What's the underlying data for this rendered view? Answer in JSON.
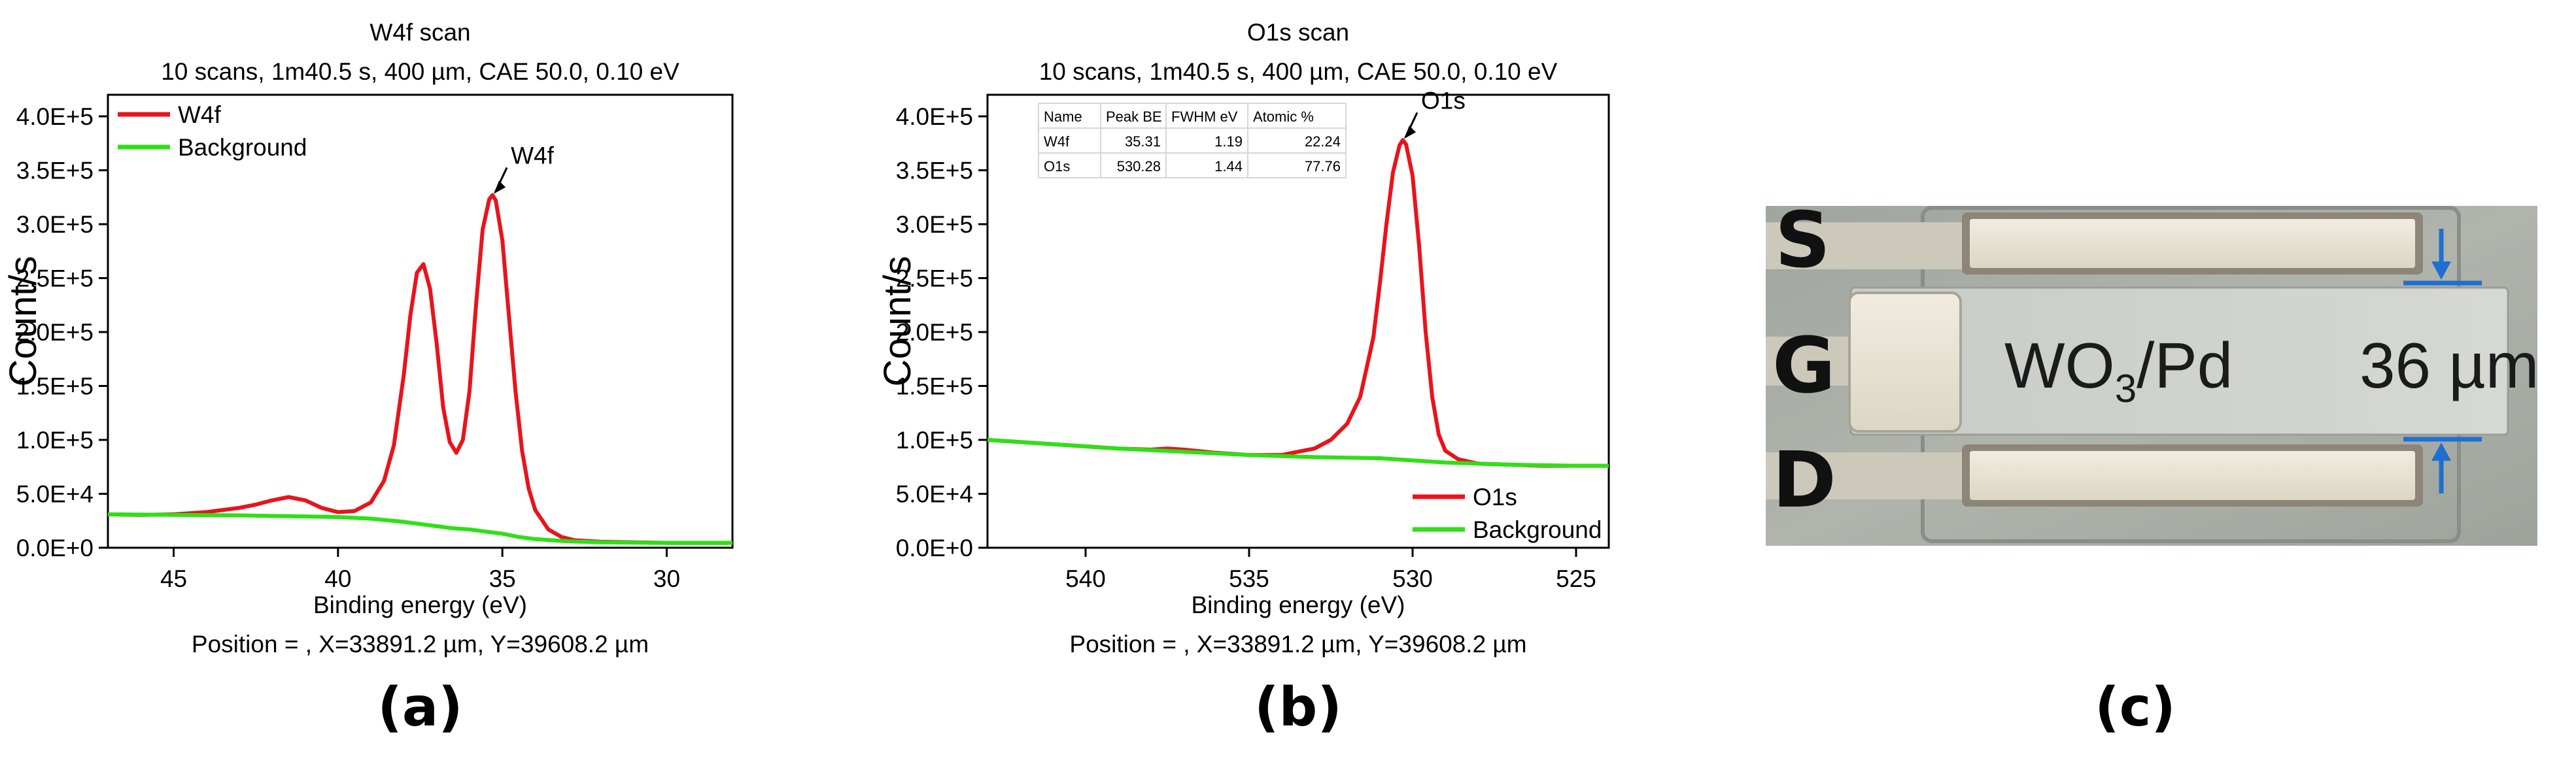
{
  "chart_data": [
    {
      "type": "line",
      "panel_label": "(a)",
      "title": "W4f scan",
      "subtitle": "10 scans, 1m40.5 s, 400 µm, CAE 50.0, 0.10 eV",
      "xlabel": "Binding energy (eV)",
      "ylabel": "Count/s",
      "footer": "Position = , X=33891.2 µm, Y=39608.2 µm",
      "xlim": [
        47,
        28
      ],
      "ylim": [
        0,
        420000
      ],
      "xticks": [
        45,
        40,
        35,
        30
      ],
      "xtick_labels": [
        "45",
        "40",
        "35",
        "30"
      ],
      "yticks": [
        0,
        50000,
        100000,
        150000,
        200000,
        250000,
        300000,
        350000,
        400000
      ],
      "ytick_labels": [
        "0.0E+0",
        "5.0E+4",
        "1.0E+5",
        "1.5E+5",
        "2.0E+5",
        "2.5E+5",
        "3.0E+5",
        "3.5E+5",
        "4.0E+5"
      ],
      "legend_position": "top-left",
      "series": [
        {
          "name": "W4f",
          "color": "#e8141c",
          "x": [
            47,
            46,
            45,
            44,
            43,
            42.5,
            42,
            41.5,
            41,
            40.5,
            40,
            39.5,
            39,
            38.6,
            38.3,
            38,
            37.8,
            37.6,
            37.4,
            37.2,
            37,
            36.8,
            36.6,
            36.4,
            36.2,
            36,
            35.8,
            35.6,
            35.4,
            35.3,
            35.2,
            35,
            34.8,
            34.6,
            34.4,
            34.2,
            34,
            33.6,
            33.2,
            32.8,
            32,
            31,
            30,
            29,
            28
          ],
          "y": [
            31000,
            30500,
            31000,
            33000,
            37000,
            40000,
            44000,
            47000,
            44000,
            37000,
            33000,
            34000,
            42000,
            62000,
            95000,
            160000,
            215000,
            255000,
            263000,
            240000,
            190000,
            130000,
            98000,
            88000,
            100000,
            145000,
            225000,
            295000,
            323000,
            327000,
            322000,
            285000,
            215000,
            145000,
            90000,
            55000,
            35000,
            17000,
            10000,
            7000,
            5500,
            5000,
            4500,
            4500,
            4500
          ]
        },
        {
          "name": "Background",
          "color": "#2ee016",
          "x": [
            47,
            45,
            43,
            41,
            40,
            39,
            38,
            37,
            36.5,
            36,
            35.5,
            35,
            34.5,
            34,
            33.5,
            33,
            32,
            30,
            28
          ],
          "y": [
            31000,
            30500,
            30000,
            29000,
            28500,
            27000,
            24000,
            20000,
            18000,
            17000,
            15000,
            13000,
            10000,
            8000,
            7000,
            6000,
            5000,
            4500,
            4500
          ]
        }
      ],
      "annotations": [
        {
          "text": "W4f",
          "x": 35.3,
          "y": 327000
        }
      ]
    },
    {
      "type": "line",
      "panel_label": "(b)",
      "title": "O1s scan",
      "subtitle": "10 scans, 1m40.5 s, 400 µm, CAE 50.0, 0.10 eV",
      "xlabel": "Binding energy (eV)",
      "ylabel": "Count/s",
      "footer": "Position = , X=33891.2 µm, Y=39608.2 µm",
      "xlim": [
        543,
        524
      ],
      "ylim": [
        0,
        420000
      ],
      "xticks": [
        540,
        535,
        530,
        525
      ],
      "xtick_labels": [
        "540",
        "535",
        "530",
        "525"
      ],
      "yticks": [
        0,
        50000,
        100000,
        150000,
        200000,
        250000,
        300000,
        350000,
        400000
      ],
      "ytick_labels": [
        "0.0E+0",
        "5.0E+4",
        "1.0E+5",
        "1.5E+5",
        "2.0E+5",
        "2.5E+5",
        "3.0E+5",
        "3.5E+5",
        "4.0E+5"
      ],
      "legend_position": "bottom-right",
      "series": [
        {
          "name": "O1s",
          "color": "#e8141c",
          "x": [
            543,
            541,
            539,
            538,
            537.5,
            537,
            536,
            535,
            534,
            533,
            532.5,
            532,
            531.6,
            531.2,
            531,
            530.8,
            530.6,
            530.4,
            530.3,
            530.2,
            530,
            529.8,
            529.6,
            529.4,
            529.2,
            529,
            528.6,
            528,
            527,
            526,
            525,
            524
          ],
          "y": [
            100000,
            96000,
            92000,
            91000,
            92000,
            91000,
            88000,
            86000,
            86000,
            92000,
            100000,
            115000,
            140000,
            195000,
            245000,
            300000,
            348000,
            373000,
            378000,
            374000,
            345000,
            280000,
            200000,
            140000,
            105000,
            90000,
            82000,
            78000,
            77000,
            76000,
            76000,
            76000
          ]
        },
        {
          "name": "Background",
          "color": "#2ee016",
          "x": [
            543,
            541,
            539,
            537,
            535,
            533,
            531,
            530,
            529,
            528,
            527,
            525,
            524
          ],
          "y": [
            100000,
            96000,
            92000,
            89000,
            86000,
            84000,
            83000,
            81000,
            79000,
            78000,
            77000,
            76000,
            76000
          ]
        }
      ],
      "annotations": [
        {
          "text": "O1s",
          "x": 530.3,
          "y": 378000
        }
      ],
      "table": {
        "columns": [
          "Name",
          "Peak BE",
          "FWHM eV",
          "Atomic %"
        ],
        "rows": [
          [
            "W4f",
            "35.31",
            "1.19",
            "22.24"
          ],
          [
            "O1s",
            "530.28",
            "1.44",
            "77.76"
          ]
        ]
      }
    }
  ],
  "micrograph": {
    "panel_label": "(c)",
    "labels": {
      "source": "S",
      "gate": "G",
      "drain": "D"
    },
    "material_main": "WO",
    "material_sub": "3",
    "material_rest": "/Pd",
    "width_label": "36 µm"
  },
  "colors": {
    "red": "#e8141c",
    "green": "#2ee016",
    "arrow_blue": "#1f6fd0",
    "substrate": "#a7aca6",
    "pad": "#ebe6d6"
  }
}
